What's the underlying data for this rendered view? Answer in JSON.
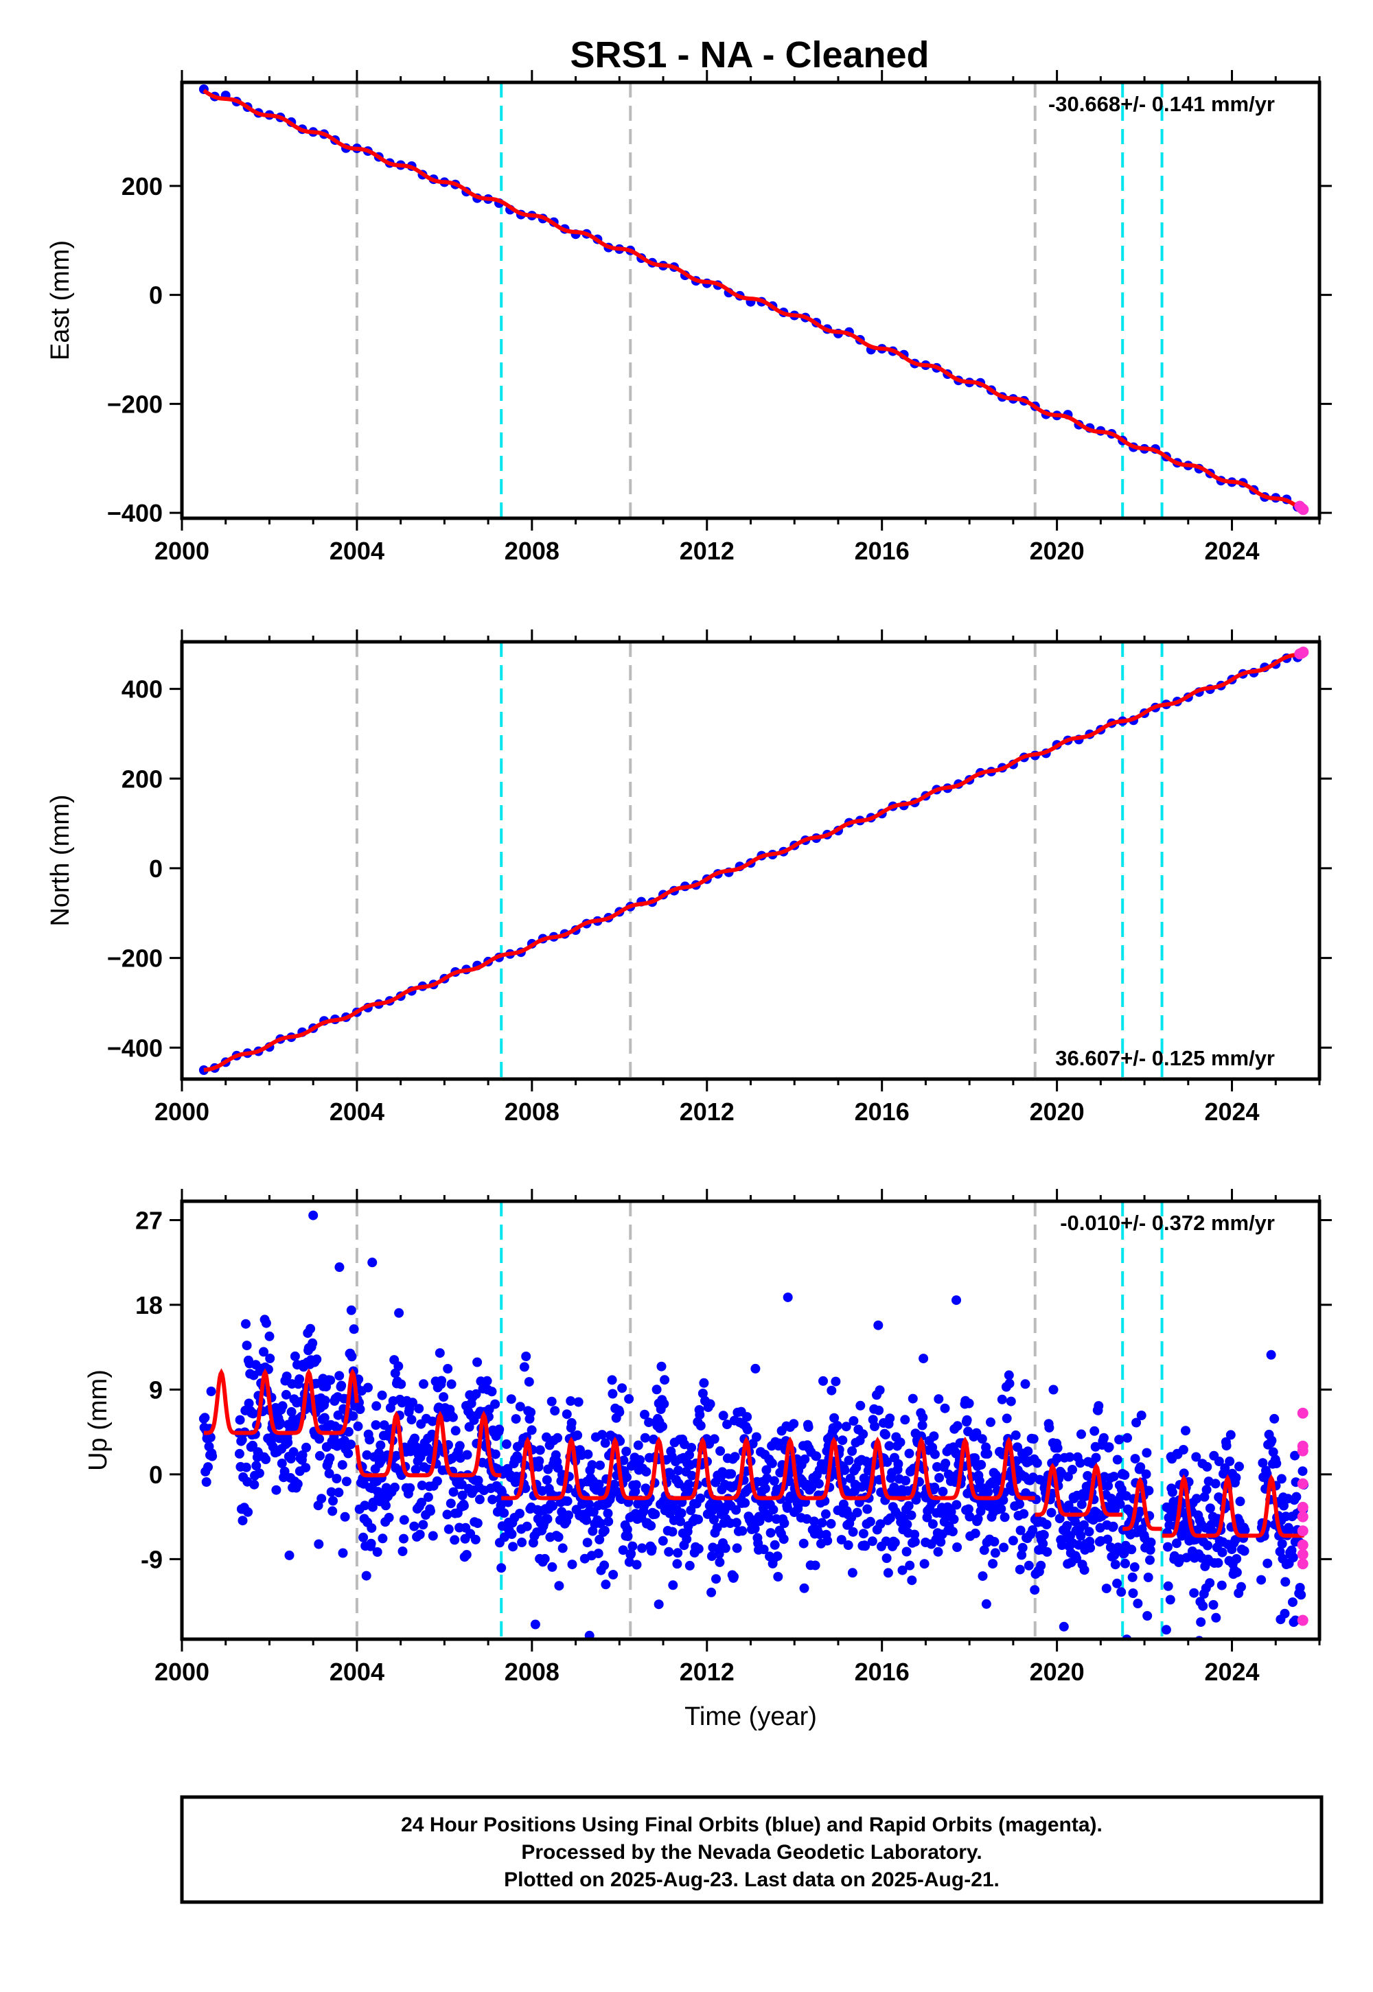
{
  "title": "SRS1  - NA - Cleaned",
  "colors": {
    "final_orbits": "#0000ff",
    "rapid_orbits": "#ff33cc",
    "model_fit": "#ff0000",
    "equipment_change": "#bbbbbb",
    "earthquake_event": "#00e5ee"
  },
  "footer": {
    "line1": "24 Hour Positions Using Final Orbits (blue) and Rapid Orbits (magenta).",
    "line2": "Processed by the Nevada Geodetic Laboratory.",
    "line3": "Plotted on 2025-Aug-23. Last data on 2025-Aug-21."
  },
  "chart_data": [
    {
      "type": "scatter",
      "ylabel": "East (mm)",
      "xlabel": "",
      "rate_label": "-30.668+/- 0.141 mm/yr",
      "rate_position": "top-right",
      "xlim": [
        2000,
        2026
      ],
      "ylim": [
        -410,
        390
      ],
      "xticks": [
        2000,
        2004,
        2008,
        2012,
        2016,
        2020,
        2024
      ],
      "xtick_labels": [
        "2000",
        "2004",
        "2008",
        "2012",
        "2016",
        "2020",
        "2024"
      ],
      "yticks": [
        -400,
        -200,
        0,
        200
      ],
      "ytick_labels": [
        "−400",
        "−200",
        "0",
        "200"
      ],
      "gray_event_lines": [
        2004.0,
        2010.25,
        2019.5
      ],
      "cyan_event_lines": [
        2007.3,
        2021.5,
        2022.4
      ],
      "trend_start": {
        "x": 2000.5,
        "y": 375
      },
      "trend_end": {
        "x": 2025.6,
        "y": -392
      },
      "rapid_orbit_points": [
        [
          2025.55,
          -388
        ],
        [
          2025.6,
          -392
        ],
        [
          2025.63,
          -394
        ]
      ]
    },
    {
      "type": "scatter",
      "ylabel": "North (mm)",
      "xlabel": "",
      "rate_label": "36.607+/- 0.125 mm/yr",
      "rate_position": "bottom-right",
      "xlim": [
        2000,
        2026
      ],
      "ylim": [
        -470,
        505
      ],
      "xticks": [
        2000,
        2004,
        2008,
        2012,
        2016,
        2020,
        2024
      ],
      "xtick_labels": [
        "2000",
        "2004",
        "2008",
        "2012",
        "2016",
        "2020",
        "2024"
      ],
      "yticks": [
        -400,
        -200,
        0,
        200,
        400
      ],
      "ytick_labels": [
        "−400",
        "−200",
        "0",
        "200",
        "400"
      ],
      "gray_event_lines": [
        2004.0,
        2010.25,
        2019.5
      ],
      "cyan_event_lines": [
        2007.3,
        2021.5,
        2022.4
      ],
      "trend_start": {
        "x": 2000.5,
        "y": -450
      },
      "trend_end": {
        "x": 2025.6,
        "y": 480
      },
      "rapid_orbit_points": [
        [
          2025.55,
          478
        ],
        [
          2025.6,
          480
        ],
        [
          2025.63,
          482
        ]
      ]
    },
    {
      "type": "scatter",
      "ylabel": "Up (mm)",
      "xlabel": "Time (year)",
      "rate_label": "-0.010+/- 0.372 mm/yr",
      "rate_position": "top-right",
      "xlim": [
        2000,
        2026
      ],
      "ylim": [
        -17.5,
        29
      ],
      "xticks": [
        2000,
        2004,
        2008,
        2012,
        2016,
        2020,
        2024
      ],
      "xtick_labels": [
        "2000",
        "2004",
        "2008",
        "2012",
        "2016",
        "2020",
        "2024"
      ],
      "yticks": [
        -9,
        0,
        9,
        18,
        27
      ],
      "ytick_labels": [
        "-9",
        "0",
        "9",
        "18",
        "27"
      ],
      "gray_event_lines": [
        2004.0,
        2010.25,
        2019.5
      ],
      "cyan_event_lines": [
        2007.3,
        2021.5,
        2022.4
      ],
      "seasonal_segments": [
        {
          "start": 2000.5,
          "end": 2004.0,
          "base": 6.0,
          "amplitude": 4.0
        },
        {
          "start": 2004.0,
          "end": 2007.3,
          "base": 1.5,
          "amplitude": 4.0
        },
        {
          "start": 2007.3,
          "end": 2019.5,
          "base": -1.0,
          "amplitude": 3.8
        },
        {
          "start": 2019.5,
          "end": 2021.5,
          "base": -3.0,
          "amplitude": 3.2
        },
        {
          "start": 2021.5,
          "end": 2022.4,
          "base": -4.5,
          "amplitude": 3.2
        },
        {
          "start": 2022.4,
          "end": 2025.65,
          "base": -5.0,
          "amplitude": 3.8
        }
      ],
      "data_gaps": [
        [
          2000.7,
          2001.3
        ],
        [
          2022.15,
          2022.5
        ],
        [
          2024.3,
          2024.65
        ]
      ],
      "outlier_points": [
        [
          2003.0,
          27.5
        ],
        [
          2003.6,
          22.0
        ],
        [
          2004.35,
          22.5
        ],
        [
          2013.85,
          18.8
        ],
        [
          2017.7,
          18.5
        ],
        [
          2010.9,
          -13.8
        ],
        [
          2022.5,
          -16.5
        ],
        [
          2025.45,
          -15.5
        ]
      ],
      "rapid_orbit_points": [
        [
          2025.62,
          6.5
        ],
        [
          2025.62,
          3.0
        ],
        [
          2025.62,
          2.5
        ],
        [
          2025.62,
          -1.0
        ],
        [
          2025.62,
          -3.5
        ],
        [
          2025.62,
          -4.5
        ],
        [
          2025.62,
          -6.0
        ],
        [
          2025.62,
          -7.5
        ],
        [
          2025.62,
          -8.5
        ],
        [
          2025.62,
          -9.5
        ],
        [
          2025.62,
          -15.5
        ]
      ]
    }
  ]
}
